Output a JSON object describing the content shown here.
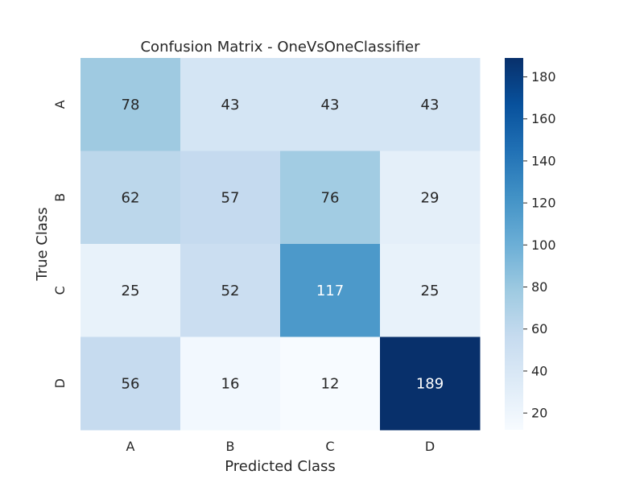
{
  "chart_data": {
    "type": "heatmap",
    "title": "Confusion Matrix - OneVsOneClassifier",
    "xlabel": "Predicted Class",
    "ylabel": "True Class",
    "x_categories": [
      "A",
      "B",
      "C",
      "D"
    ],
    "y_categories": [
      "A",
      "B",
      "C",
      "D"
    ],
    "values": [
      [
        78,
        43,
        43,
        43
      ],
      [
        62,
        57,
        76,
        29
      ],
      [
        25,
        52,
        117,
        25
      ],
      [
        56,
        16,
        12,
        189
      ]
    ],
    "colormap": "Blues",
    "color_range": [
      12,
      189
    ],
    "colorbar_ticks": [
      "20",
      "40",
      "60",
      "80",
      "100",
      "120",
      "140",
      "160",
      "180"
    ],
    "colorbar_tick_values": [
      20,
      40,
      60,
      80,
      100,
      120,
      140,
      160,
      180
    ],
    "colors": {
      "blues_stops": [
        "#f7fbff",
        "#deebf7",
        "#c6dbef",
        "#9ecae1",
        "#6baed6",
        "#4292c6",
        "#2171b5",
        "#08519c",
        "#08306b"
      ]
    }
  }
}
